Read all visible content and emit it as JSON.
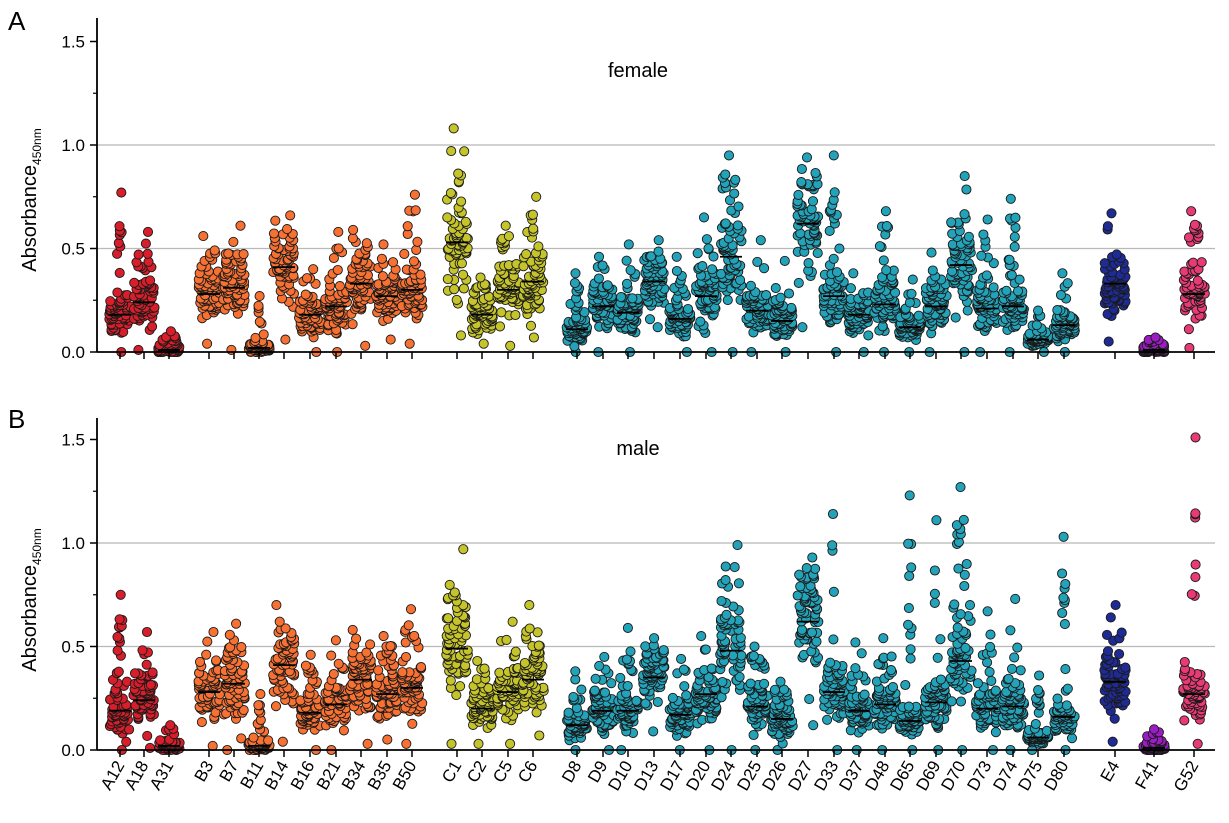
{
  "colors": {
    "A": "#d81e2a",
    "B": "#f77133",
    "C": "#c6c42b",
    "D": "#23a3b9",
    "E": "#1f2b95",
    "F": "#9b1cc3",
    "G": "#e83a74",
    "grid": "#b8b8b8",
    "marker_edge": "#1a1a1a"
  },
  "categories": [
    "A12",
    "A18",
    "A31",
    "B3",
    "B7",
    "B11",
    "B14",
    "B16",
    "B21",
    "B34",
    "B35",
    "B50",
    "C1",
    "C2",
    "C5",
    "C6",
    "D8",
    "D9",
    "D10",
    "D13",
    "D17",
    "D20",
    "D24",
    "D25",
    "D26",
    "D27",
    "D33",
    "D37",
    "D48",
    "D65",
    "D69",
    "D70",
    "D73",
    "D74",
    "D75",
    "D80",
    "E4",
    "F41",
    "G52"
  ],
  "group_of": [
    "A",
    "A",
    "A",
    "B",
    "B",
    "B",
    "B",
    "B",
    "B",
    "B",
    "B",
    "B",
    "C",
    "C",
    "C",
    "C",
    "D",
    "D",
    "D",
    "D",
    "D",
    "D",
    "D",
    "D",
    "D",
    "D",
    "D",
    "D",
    "D",
    "D",
    "D",
    "D",
    "D",
    "D",
    "D",
    "D",
    "E",
    "F",
    "G"
  ],
  "chart_data": [
    {
      "type": "scatter",
      "panel_label": "A",
      "title": "female",
      "ylabel": "Absorbance",
      "ylabel_subscript": "450nm",
      "ylim": [
        0,
        1.6
      ],
      "yticks": [
        "0.0",
        "0.5",
        "1.0",
        "1.5"
      ],
      "grid": "horizontal at 0.5 and 1.0",
      "series": [
        {
          "category": "A12",
          "median": 0.18,
          "max": 0.77,
          "min": 0.0
        },
        {
          "category": "A18",
          "median": 0.24,
          "max": 0.58,
          "min": 0.01
        },
        {
          "category": "A31",
          "median": 0.01,
          "max": 0.1,
          "min": 0.0
        },
        {
          "category": "B3",
          "median": 0.28,
          "max": 0.56,
          "min": 0.04
        },
        {
          "category": "B7",
          "median": 0.31,
          "max": 0.61,
          "min": 0.01
        },
        {
          "category": "B11",
          "median": 0.02,
          "max": 0.27,
          "min": 0.0
        },
        {
          "category": "B14",
          "median": 0.41,
          "max": 0.66,
          "min": 0.06
        },
        {
          "category": "B16",
          "median": 0.18,
          "max": 0.4,
          "min": 0.0
        },
        {
          "category": "B21",
          "median": 0.22,
          "max": 0.58,
          "min": 0.0
        },
        {
          "category": "B34",
          "median": 0.33,
          "max": 0.59,
          "min": 0.03
        },
        {
          "category": "B35",
          "median": 0.27,
          "max": 0.52,
          "min": 0.06
        },
        {
          "category": "B50",
          "median": 0.3,
          "max": 0.76,
          "min": 0.04
        },
        {
          "category": "C1",
          "median": 0.53,
          "max": 1.08,
          "min": 0.08
        },
        {
          "category": "C2",
          "median": 0.18,
          "max": 0.36,
          "min": 0.04
        },
        {
          "category": "C5",
          "median": 0.3,
          "max": 0.61,
          "min": 0.03
        },
        {
          "category": "C6",
          "median": 0.34,
          "max": 0.75,
          "min": 0.07
        },
        {
          "category": "D8",
          "median": 0.11,
          "max": 0.38,
          "min": 0.0
        },
        {
          "category": "D9",
          "median": 0.22,
          "max": 0.46,
          "min": 0.0
        },
        {
          "category": "D10",
          "median": 0.19,
          "max": 0.52,
          "min": 0.0
        },
        {
          "category": "D13",
          "median": 0.34,
          "max": 0.54,
          "min": 0.12
        },
        {
          "category": "D17",
          "median": 0.16,
          "max": 0.46,
          "min": 0.0
        },
        {
          "category": "D20",
          "median": 0.27,
          "max": 0.65,
          "min": 0.0
        },
        {
          "category": "D24",
          "median": 0.46,
          "max": 0.95,
          "min": 0.0
        },
        {
          "category": "D25",
          "median": 0.2,
          "max": 0.54,
          "min": 0.0
        },
        {
          "category": "D26",
          "median": 0.15,
          "max": 0.44,
          "min": 0.0
        },
        {
          "category": "D27",
          "median": 0.62,
          "max": 0.94,
          "min": 0.12
        },
        {
          "category": "D33",
          "median": 0.27,
          "max": 0.95,
          "min": 0.0
        },
        {
          "category": "D37",
          "median": 0.18,
          "max": 0.38,
          "min": 0.0
        },
        {
          "category": "D48",
          "median": 0.23,
          "max": 0.68,
          "min": 0.0
        },
        {
          "category": "D65",
          "median": 0.12,
          "max": 0.35,
          "min": 0.0
        },
        {
          "category": "D69",
          "median": 0.22,
          "max": 0.48,
          "min": 0.0
        },
        {
          "category": "D70",
          "median": 0.42,
          "max": 0.85,
          "min": 0.0
        },
        {
          "category": "D73",
          "median": 0.21,
          "max": 0.64,
          "min": 0.0
        },
        {
          "category": "D74",
          "median": 0.22,
          "max": 0.74,
          "min": 0.0
        },
        {
          "category": "D75",
          "median": 0.06,
          "max": 0.2,
          "min": 0.0
        },
        {
          "category": "D80",
          "median": 0.13,
          "max": 0.38,
          "min": 0.0
        },
        {
          "category": "E4",
          "median": 0.33,
          "max": 0.67,
          "min": 0.05
        },
        {
          "category": "F41",
          "median": 0.01,
          "max": 0.07,
          "min": 0.0
        },
        {
          "category": "G52",
          "median": 0.28,
          "max": 0.68,
          "min": 0.02
        }
      ]
    },
    {
      "type": "scatter",
      "panel_label": "B",
      "title": "male",
      "ylabel": "Absorbance",
      "ylabel_subscript": "450nm",
      "ylim": [
        0,
        1.6
      ],
      "yticks": [
        "0.0",
        "0.5",
        "1.0",
        "1.5"
      ],
      "grid": "horizontal at 0.5 and 1.0",
      "series": [
        {
          "category": "A12",
          "median": 0.19,
          "max": 0.75,
          "min": 0.0
        },
        {
          "category": "A18",
          "median": 0.24,
          "max": 0.57,
          "min": 0.01
        },
        {
          "category": "A31",
          "median": 0.02,
          "max": 0.12,
          "min": 0.0
        },
        {
          "category": "B3",
          "median": 0.28,
          "max": 0.57,
          "min": 0.02
        },
        {
          "category": "B7",
          "median": 0.32,
          "max": 0.61,
          "min": 0.0
        },
        {
          "category": "B11",
          "median": 0.02,
          "max": 0.27,
          "min": 0.0
        },
        {
          "category": "B14",
          "median": 0.41,
          "max": 0.7,
          "min": 0.04
        },
        {
          "category": "B16",
          "median": 0.18,
          "max": 0.46,
          "min": 0.0
        },
        {
          "category": "B21",
          "median": 0.22,
          "max": 0.53,
          "min": 0.0
        },
        {
          "category": "B34",
          "median": 0.34,
          "max": 0.58,
          "min": 0.03
        },
        {
          "category": "B35",
          "median": 0.27,
          "max": 0.55,
          "min": 0.05
        },
        {
          "category": "B50",
          "median": 0.3,
          "max": 0.68,
          "min": 0.03
        },
        {
          "category": "C1",
          "median": 0.49,
          "max": 0.97,
          "min": 0.03
        },
        {
          "category": "C2",
          "median": 0.2,
          "max": 0.43,
          "min": 0.03
        },
        {
          "category": "C5",
          "median": 0.28,
          "max": 0.62,
          "min": 0.03
        },
        {
          "category": "C6",
          "median": 0.34,
          "max": 0.7,
          "min": 0.07
        },
        {
          "category": "D8",
          "median": 0.12,
          "max": 0.38,
          "min": 0.0
        },
        {
          "category": "D9",
          "median": 0.19,
          "max": 0.45,
          "min": 0.0
        },
        {
          "category": "D10",
          "median": 0.19,
          "max": 0.59,
          "min": 0.0
        },
        {
          "category": "D13",
          "median": 0.35,
          "max": 0.54,
          "min": 0.09
        },
        {
          "category": "D17",
          "median": 0.17,
          "max": 0.44,
          "min": 0.0
        },
        {
          "category": "D20",
          "median": 0.27,
          "max": 0.55,
          "min": 0.0
        },
        {
          "category": "D24",
          "median": 0.48,
          "max": 0.99,
          "min": 0.0
        },
        {
          "category": "D25",
          "median": 0.21,
          "max": 0.5,
          "min": 0.0
        },
        {
          "category": "D26",
          "median": 0.15,
          "max": 0.33,
          "min": 0.0
        },
        {
          "category": "D27",
          "median": 0.62,
          "max": 0.93,
          "min": 0.12
        },
        {
          "category": "D33",
          "median": 0.28,
          "max": 1.14,
          "min": 0.0
        },
        {
          "category": "D37",
          "median": 0.19,
          "max": 0.52,
          "min": 0.0
        },
        {
          "category": "D48",
          "median": 0.22,
          "max": 0.54,
          "min": 0.0
        },
        {
          "category": "D65",
          "median": 0.14,
          "max": 1.23,
          "min": 0.0
        },
        {
          "category": "D69",
          "median": 0.23,
          "max": 1.11,
          "min": 0.0
        },
        {
          "category": "D70",
          "median": 0.43,
          "max": 1.27,
          "min": 0.0
        },
        {
          "category": "D73",
          "median": 0.2,
          "max": 0.67,
          "min": 0.0
        },
        {
          "category": "D74",
          "median": 0.21,
          "max": 0.73,
          "min": 0.0
        },
        {
          "category": "D75",
          "median": 0.06,
          "max": 0.36,
          "min": 0.0
        },
        {
          "category": "D80",
          "median": 0.16,
          "max": 1.03,
          "min": 0.0
        },
        {
          "category": "E4",
          "median": 0.33,
          "max": 0.7,
          "min": 0.04
        },
        {
          "category": "F41",
          "median": 0.01,
          "max": 0.1,
          "min": 0.0
        },
        {
          "category": "G52",
          "median": 0.27,
          "max": 1.51,
          "min": 0.03
        }
      ]
    }
  ]
}
